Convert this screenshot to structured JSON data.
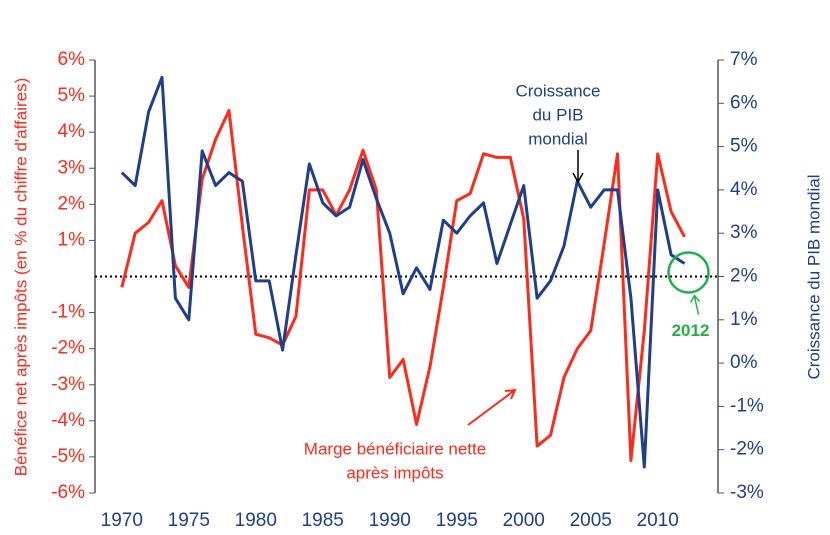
{
  "chart_data": {
    "type": "line",
    "x": [
      1970,
      1971,
      1972,
      1973,
      1974,
      1975,
      1976,
      1977,
      1978,
      1979,
      1980,
      1981,
      1982,
      1983,
      1984,
      1985,
      1986,
      1987,
      1988,
      1989,
      1990,
      1991,
      1992,
      1993,
      1994,
      1995,
      1996,
      1997,
      1998,
      1999,
      2000,
      2001,
      2002,
      2003,
      2004,
      2005,
      2006,
      2007,
      2008,
      2009,
      2010,
      2011,
      2012
    ],
    "series": [
      {
        "name": "Marge bénéficiaire nette après impôts",
        "color": "#ff2a1a",
        "axis": "y",
        "values": [
          -0.3,
          1.2,
          1.5,
          2.1,
          0.3,
          -0.3,
          2.7,
          3.8,
          4.6,
          1.4,
          -1.6,
          -1.7,
          -1.9,
          -1.1,
          2.4,
          2.4,
          1.7,
          2.4,
          3.5,
          2.4,
          -2.8,
          -2.3,
          -4.1,
          -2.5,
          -0.3,
          2.1,
          2.3,
          3.4,
          3.3,
          3.3,
          1.6,
          -4.7,
          -4.4,
          -2.8,
          -2.0,
          -1.5,
          0.9,
          3.4,
          -5.1,
          -1.5,
          3.4,
          1.8,
          1.1
        ]
      },
      {
        "name": "Croissance du PIB mondial",
        "color": "#1f3f8a",
        "axis": "y2",
        "values": [
          4.4,
          4.1,
          5.8,
          6.6,
          1.5,
          1.0,
          4.9,
          4.1,
          4.4,
          4.2,
          1.9,
          1.9,
          0.3,
          2.5,
          4.6,
          3.7,
          3.4,
          3.6,
          4.7,
          3.8,
          3.0,
          1.6,
          2.2,
          1.7,
          3.3,
          3.0,
          3.4,
          3.7,
          2.3,
          3.2,
          4.1,
          1.5,
          1.9,
          2.7,
          4.2,
          3.6,
          4.0,
          4.0,
          1.5,
          -2.4,
          4.0,
          2.5,
          2.3
        ]
      }
    ],
    "xlim": [
      1968,
      2014.5
    ],
    "xticks": [
      1970,
      1975,
      1980,
      1985,
      1990,
      1995,
      2000,
      2005,
      2010
    ],
    "ylim": [
      -6,
      6
    ],
    "yticks": [
      {
        "value": 6,
        "label": "6%"
      },
      {
        "value": 5,
        "label": "5%"
      },
      {
        "value": 4,
        "label": "4%"
      },
      {
        "value": 3,
        "label": "3%"
      },
      {
        "value": 2,
        "label": "2%"
      },
      {
        "value": 1,
        "label": "1%"
      },
      {
        "value": -1,
        "label": "-1%"
      },
      {
        "value": -2,
        "label": "-2%"
      },
      {
        "value": -3,
        "label": "-3%"
      },
      {
        "value": -4,
        "label": "-4%"
      },
      {
        "value": -5,
        "label": "-5%"
      },
      {
        "value": -6,
        "label": "-6%"
      }
    ],
    "y2lim": [
      -3,
      7
    ],
    "y2ticks": [
      {
        "value": 7,
        "label": "7%"
      },
      {
        "value": 6,
        "label": "6%"
      },
      {
        "value": 5,
        "label": "5%"
      },
      {
        "value": 4,
        "label": "4%"
      },
      {
        "value": 3,
        "label": "3%"
      },
      {
        "value": 2,
        "label": "2%"
      },
      {
        "value": 1,
        "label": "1%"
      },
      {
        "value": 0,
        "label": "0%"
      },
      {
        "value": -1,
        "label": "-1%"
      },
      {
        "value": -2,
        "label": "-2%"
      },
      {
        "value": -3,
        "label": "-3%"
      }
    ],
    "ylabel": "Bénéfice net après impôts (en % du chiffre d'affaires)",
    "y2label": "Croissance du PIB mondial",
    "reference_line": {
      "axis": "y2",
      "value": 2
    },
    "annotations": {
      "gdp": [
        "Croissance",
        "du PIB",
        "mondial"
      ],
      "margin": [
        "Marge bénéficiaire nette",
        "après impôts"
      ],
      "highlight": {
        "label": "2012",
        "x": 2012
      }
    }
  }
}
